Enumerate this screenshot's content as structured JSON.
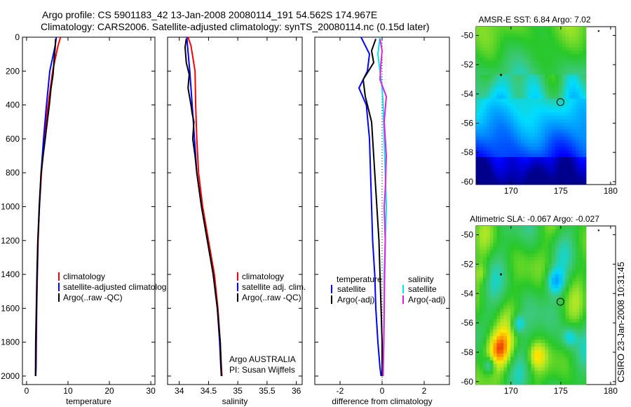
{
  "header": {
    "line1": "Argo profile: CS 5901183_42 13-Jan-2008 20080114_191 54.562S 174.967E",
    "line2": "Climatology: CARS2006. Satellite-adjusted climatology: synTS_20080114.nc (0.15d later)"
  },
  "side_label": "CSIRO 23-Jan-2008 10:31:45",
  "colors": {
    "climatology": "#ff0000",
    "satellite": "#0000ff",
    "argo": "#000000",
    "cyan": "#00e5ee",
    "magenta": "#e020e0"
  },
  "chart_data": [
    {
      "type": "line",
      "id": "temperature",
      "xlabel": "temperature",
      "xlim": [
        -1,
        31
      ],
      "ylim": [
        2050,
        0
      ],
      "xticks": [
        0,
        10,
        20,
        30
      ],
      "yticks": [
        0,
        200,
        400,
        600,
        800,
        1000,
        1200,
        1400,
        1600,
        1800,
        2000
      ],
      "legend": [
        "climatology",
        "satellite-adjusted climatolog",
        "Argo(..raw -QC)"
      ],
      "series": [
        {
          "name": "climatology",
          "color": "#ff0000",
          "x": [
            8.2,
            7.6,
            6.3,
            5.2,
            4.3,
            3.6,
            3.1,
            2.8,
            2.6,
            2.45,
            2.35,
            2.3,
            2.2
          ],
          "y": [
            0,
            50,
            200,
            400,
            600,
            800,
            1000,
            1200,
            1400,
            1600,
            1800,
            1950,
            2000
          ]
        },
        {
          "name": "satellite-adjusted climatology",
          "color": "#0000ff",
          "x": [
            7.2,
            6.9,
            5.6,
            4.8,
            4.1,
            3.5,
            3.05,
            2.75,
            2.55,
            2.4,
            2.3,
            2.25,
            2.2
          ],
          "y": [
            0,
            50,
            200,
            400,
            600,
            800,
            1000,
            1200,
            1400,
            1600,
            1800,
            1950,
            2000
          ]
        },
        {
          "name": "Argo(..raw -QC)",
          "color": "#000000",
          "x": [
            7.0,
            6.9,
            6.6,
            6.4,
            5.9,
            5.5,
            5.0,
            4.5,
            4.0,
            3.5,
            3.1,
            2.7,
            2.5,
            2.35,
            2.2,
            2.15
          ],
          "y": [
            10,
            60,
            150,
            220,
            300,
            400,
            500,
            600,
            700,
            800,
            1000,
            1200,
            1400,
            1600,
            1800,
            2000
          ]
        }
      ]
    },
    {
      "type": "line",
      "id": "salinity",
      "xlabel": "salinity",
      "xlim": [
        33.8,
        36.1
      ],
      "ylim": [
        2050,
        0
      ],
      "xticks": [
        34,
        34.5,
        35,
        35.5,
        36
      ],
      "legend": [
        "climatology",
        "satellite adj. clim.",
        "Argo(..raw -QC)"
      ],
      "annotation": [
        "Argo AUSTRALIA",
        "PI: Susan Wijffels"
      ],
      "series": [
        {
          "name": "climatology",
          "color": "#ff0000",
          "x": [
            34.15,
            34.2,
            34.27,
            34.28,
            34.3,
            34.33,
            34.4,
            34.5,
            34.6,
            34.66,
            34.7,
            34.72,
            34.73
          ],
          "y": [
            0,
            50,
            200,
            400,
            600,
            800,
            1000,
            1200,
            1400,
            1600,
            1800,
            1950,
            2000
          ]
        },
        {
          "name": "satellite adj. clim.",
          "color": "#0000ff",
          "x": [
            34.13,
            34.14,
            34.18,
            34.22,
            34.26,
            34.3,
            34.38,
            34.48,
            34.58,
            34.65,
            34.69,
            34.71,
            34.72
          ],
          "y": [
            0,
            50,
            200,
            400,
            600,
            800,
            1000,
            1200,
            1400,
            1600,
            1800,
            1950,
            2000
          ]
        },
        {
          "name": "Argo(..raw -QC)",
          "color": "#000000",
          "x": [
            34.12,
            34.1,
            34.12,
            34.17,
            34.15,
            34.2,
            34.22,
            34.25,
            34.23,
            34.27,
            34.3,
            34.38,
            34.48,
            34.58,
            34.65,
            34.7,
            34.72
          ],
          "y": [
            10,
            60,
            150,
            220,
            300,
            400,
            450,
            500,
            600,
            700,
            800,
            1000,
            1200,
            1400,
            1600,
            1800,
            2000
          ]
        }
      ]
    },
    {
      "type": "line",
      "id": "difference",
      "xlabel": "difference from climatology",
      "xlim": [
        -3.2,
        3.2
      ],
      "ylim": [
        2050,
        0
      ],
      "xticks": [
        -2,
        0,
        2
      ],
      "legend_left_title": "temperature",
      "legend_left": [
        "satellite",
        "Argo(-adj)"
      ],
      "legend_right_title": "salinity",
      "legend_right": [
        "satellite",
        "Argo(-adj)"
      ],
      "series": [
        {
          "name": "temperature satellite",
          "color": "#0000ff",
          "x": [
            -1.0,
            -0.6,
            -0.7,
            -1.1,
            -0.75,
            -0.6,
            -0.55,
            -0.5,
            -0.45,
            -0.35,
            -0.3,
            -0.2,
            -0.1,
            -0.05
          ],
          "y": [
            0,
            100,
            200,
            300,
            400,
            600,
            800,
            1000,
            1200,
            1400,
            1600,
            1800,
            1950,
            2000
          ]
        },
        {
          "name": "temperature Argo(-adj)",
          "color": "#000000",
          "x": [
            -0.3,
            -0.5,
            -0.4,
            -0.9,
            -0.8,
            -0.5,
            -0.4,
            -0.3,
            -0.25,
            -0.15,
            -0.1,
            -0.05,
            0.0,
            0.0
          ],
          "y": [
            10,
            80,
            150,
            250,
            350,
            500,
            700,
            900,
            1000,
            1200,
            1400,
            1600,
            1800,
            2000
          ]
        },
        {
          "name": "salinity satellite",
          "color": "#00e5ee",
          "x": [
            -0.1,
            -0.2,
            -0.1,
            0.0,
            0.05,
            0.1,
            0.15,
            0.2,
            0.15,
            0.1,
            0.1,
            0.08,
            0.05,
            0.05
          ],
          "y": [
            0,
            100,
            200,
            300,
            400,
            600,
            800,
            1000,
            1200,
            1400,
            1600,
            1800,
            1950,
            2000
          ]
        },
        {
          "name": "salinity Argo(-adj)",
          "color": "#e020e0",
          "x": [
            -0.1,
            0.0,
            -0.05,
            -0.1,
            0.2,
            0.1,
            0.2,
            0.15,
            0.1,
            0.15,
            0.12,
            0.1,
            0.08,
            0.05
          ],
          "y": [
            10,
            80,
            150,
            250,
            350,
            500,
            700,
            900,
            1000,
            1200,
            1400,
            1600,
            1800,
            2000
          ]
        }
      ]
    },
    {
      "type": "heatmap",
      "id": "sst-map",
      "title": "AMSR-E SST: 6.84 Argo: 7.02",
      "xlim": [
        166.5,
        180.5
      ],
      "ylim": [
        -60.2,
        -49.4
      ],
      "xticks": [
        170,
        175,
        180
      ],
      "yticks": [
        -50,
        -52,
        -54,
        -56,
        -58,
        -60
      ],
      "marker": {
        "lon": 174.967,
        "lat": -54.562
      }
    },
    {
      "type": "heatmap",
      "id": "sla-map",
      "title": "Altimetric SLA: -0.067 Argo: -0.027",
      "xlim": [
        166.5,
        180.5
      ],
      "ylim": [
        -60.2,
        -49.4
      ],
      "xticks": [
        170,
        175,
        180
      ],
      "yticks": [
        -50,
        -52,
        -54,
        -56,
        -58,
        -60
      ],
      "marker": {
        "lon": 174.967,
        "lat": -54.562
      }
    }
  ]
}
